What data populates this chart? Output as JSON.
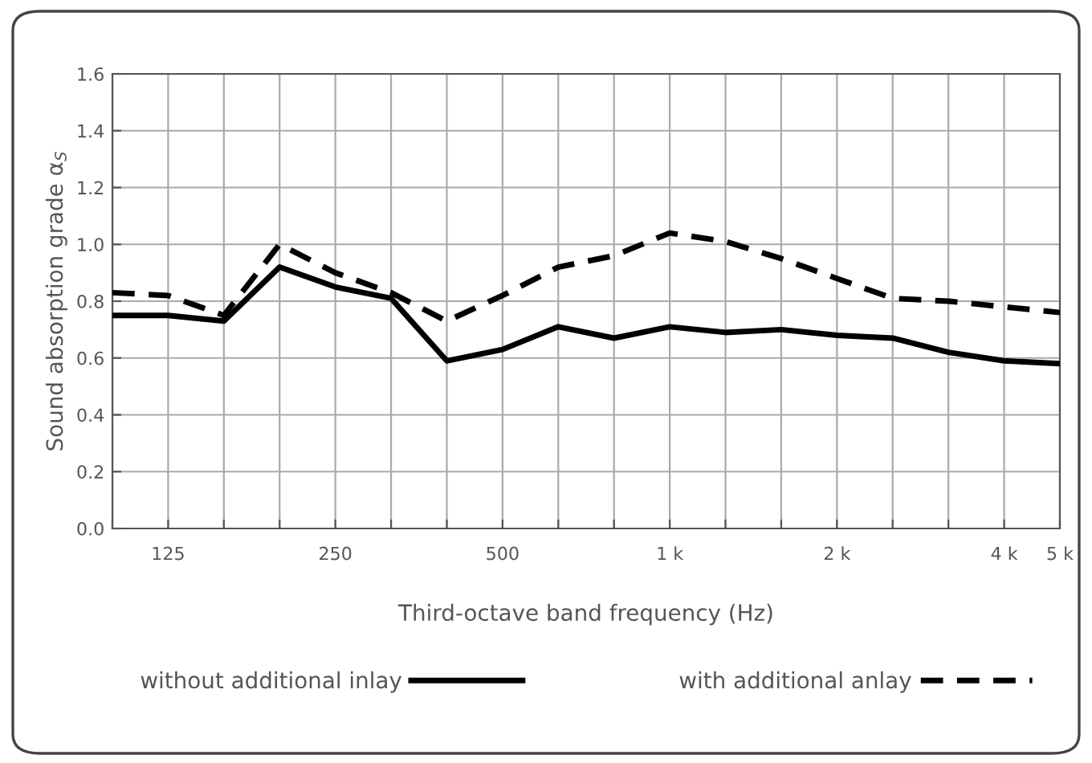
{
  "chart_data": {
    "type": "line",
    "xlabel": "Third-octave band frequency (Hz)",
    "ylabel": "Sound absorption grade α$_{S}$",
    "categories": [
      null,
      "125",
      null,
      null,
      "250",
      null,
      null,
      "500",
      null,
      null,
      "1 k",
      null,
      null,
      "2 k",
      null,
      null,
      "4 k",
      "5 k"
    ],
    "series": [
      {
        "name": "without additional inlay",
        "color": "#000000",
        "line_style": "solid",
        "values": [
          0.75,
          0.75,
          0.73,
          0.92,
          0.85,
          0.81,
          0.59,
          0.63,
          0.71,
          0.67,
          0.71,
          0.69,
          0.7,
          0.68,
          0.67,
          0.62,
          0.59,
          0.58
        ]
      },
      {
        "name": "with additional anlay",
        "color": "#000000",
        "line_style": "dashed",
        "values": [
          0.83,
          0.82,
          0.75,
          1.0,
          0.9,
          0.83,
          0.73,
          0.82,
          0.92,
          0.96,
          1.04,
          1.01,
          0.95,
          0.88,
          0.81,
          0.8,
          0.78,
          0.76
        ]
      }
    ],
    "ylim": [
      0,
      1.6
    ],
    "yticks": [
      {
        "value": 0,
        "label": "0.0"
      },
      0.2,
      0.4,
      0.6,
      0.8,
      {
        "value": 1,
        "label": "1.0"
      },
      1.2,
      1.4,
      1.6
    ],
    "grid": true,
    "legend": "bottom",
    "marker": "none"
  }
}
